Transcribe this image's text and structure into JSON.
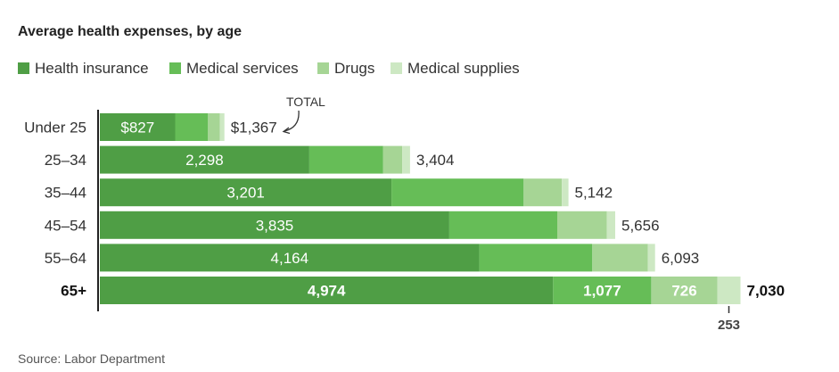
{
  "chart_data": {
    "type": "bar",
    "orientation": "horizontal",
    "stacked": true,
    "title": "Average health expenses, by age",
    "categories": [
      "Under 25",
      "25–34",
      "35–44",
      "45–54",
      "55–64",
      "65+"
    ],
    "series": [
      {
        "name": "Health insurance",
        "color": "#4f9e45",
        "values": [
          827,
          2298,
          3201,
          3835,
          4164,
          4974
        ]
      },
      {
        "name": "Medical services",
        "color": "#66bd57",
        "values": [
          360,
          810,
          1450,
          1185,
          1240,
          1077
        ]
      },
      {
        "name": "Drugs",
        "color": "#a6d595",
        "values": [
          130,
          210,
          420,
          545,
          610,
          726
        ]
      },
      {
        "name": "Medical supplies",
        "color": "#cde8c3",
        "values": [
          50,
          86,
          71,
          91,
          79,
          253
        ]
      }
    ],
    "totals": [
      1367,
      3404,
      5142,
      5656,
      6093,
      7030
    ],
    "bar_labels": {
      "health_insurance": [
        "$827",
        "2,298",
        "3,201",
        "3,835",
        "4,164",
        "4,974"
      ],
      "medical_services_last": "1,077",
      "drugs_last": "726",
      "supplies_last": "253"
    },
    "total_labels": [
      "$1,367",
      "3,404",
      "5,142",
      "5,656",
      "6,093",
      "7,030"
    ],
    "total_annotation": "TOTAL",
    "xlim": [
      0,
      7200
    ],
    "grid": false,
    "legend": "top-left",
    "source": "Source: Labor Department"
  }
}
